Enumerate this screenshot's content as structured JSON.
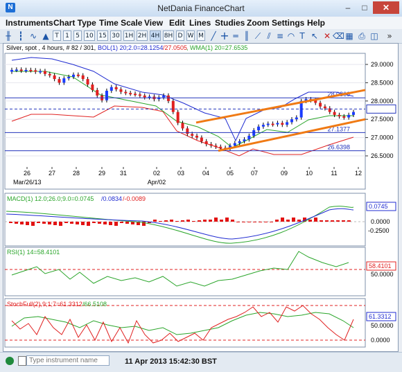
{
  "window": {
    "title": "NetDania FinanceChart",
    "min": "–",
    "max": "□",
    "close": "✕"
  },
  "menu": [
    "Instruments",
    "Chart Type",
    "Time Scale",
    "View",
    "Edit",
    "Lines",
    "Studies",
    "Zoom",
    "Settings",
    "Help"
  ],
  "toolbar": {
    "timeframes": [
      "T",
      "1",
      "5",
      "10",
      "15",
      "30",
      "1H",
      "2H",
      "4H",
      "8H",
      "D",
      "W",
      "M"
    ],
    "overflow": "»"
  },
  "main_chart": {
    "header": {
      "instrument": "Silver, spot , 4 hours, # 82 / 301,",
      "bol": "BOL(1) 20;2.0=28.1254",
      "bol_lower": "/27.0505",
      "wma": ", WMA(1) 20=27.6535"
    },
    "price_labels": [
      "29.0000",
      "28.5000",
      "28.0000",
      "27.5000",
      "27.0000",
      "26.5000"
    ],
    "level_labels": [
      "28.0866",
      "27.7810",
      "27.1377",
      "26.6398"
    ],
    "x_labels": [
      "26",
      "27",
      "28",
      "29",
      "31",
      "02",
      "03",
      "04",
      "05",
      "07",
      "09",
      "10",
      "11",
      "12"
    ],
    "date_labels": [
      "Mar/26/13",
      "Apr/02"
    ]
  },
  "macd": {
    "header_a": "MACD(1) 12.0;26.0;9.0=0.0745",
    "header_b": "/0.0834",
    "header_c": "/-0.0089",
    "axis": [
      "0.0745",
      "0.0000",
      "-0.2500"
    ]
  },
  "rsi": {
    "header": "RSI(1) 14=58.4101",
    "axis": [
      "58.4101",
      "50.0000"
    ]
  },
  "stoch": {
    "header_a": "StochFull(2),9;1;7=61.3312",
    "header_b": "/66.5108",
    "axis": [
      "61.3312",
      "50.0000",
      "0.0000"
    ]
  },
  "statusbar": {
    "placeholder": "Type instrument name",
    "timestamp": "11 Apr 2013 15:42:30 BST"
  },
  "colors": {
    "up_candle": "#1a3cff",
    "down_candle": "#e02020",
    "bollinger": "#1f2bd1",
    "wma": "#2aa52a",
    "trend_channel": "#f07a14",
    "macd_hist": "#e21212"
  }
}
